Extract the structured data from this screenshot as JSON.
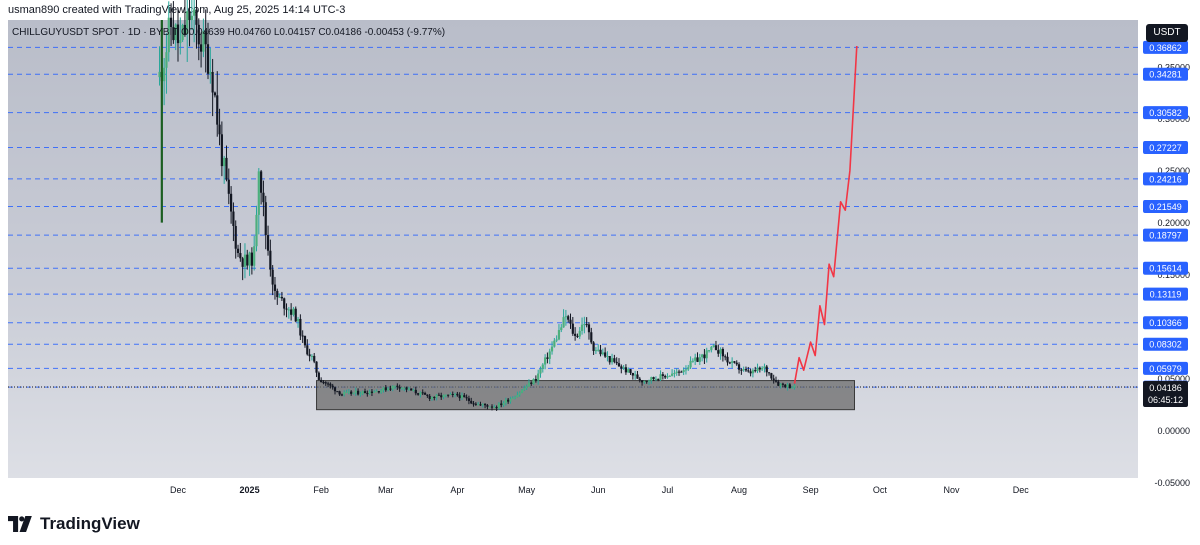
{
  "header": {
    "text": "usman890 created with TradingView.com, Aug 25, 2025 14:14 UTC-3"
  },
  "symbol": {
    "name": "CHILLGUYUSDT SPOT · 1D · BYBIT",
    "open": "O0.04639",
    "high": "H0.04760",
    "low": "L0.04157",
    "close": "C0.04186",
    "change": "-0.00453 (-9.77%)"
  },
  "unit": "USDT",
  "brand": "TradingView",
  "colors": {
    "up": "#26a69a",
    "down": "#131722",
    "level_line": "#2962ff",
    "level_badge": "#2962ff",
    "projection": "#f23645",
    "zone": "#6b6b6b",
    "price_badge": "#131722"
  },
  "chart_data": {
    "type": "candlestick",
    "symbol": "CHILLGUYUSDT",
    "timeframe": "1D",
    "exchange": "BYBIT",
    "current_price": 0.04186,
    "countdown": "06:45:12",
    "x_tick_labels": [
      "Dec",
      "2025",
      "Feb",
      "Mar",
      "Apr",
      "May",
      "Jun",
      "Jul",
      "Aug",
      "Sep",
      "Oct",
      "Nov",
      "Dec"
    ],
    "y_tick_labels": [
      "0.35000",
      "0.30000",
      "0.25000",
      "0.20000",
      "0.15000",
      "0.05000",
      "0.00000",
      "-0.05000"
    ],
    "ylim": [
      -0.065,
      0.395
    ],
    "horizontal_levels": [
      0.36862,
      0.34281,
      0.30582,
      0.27227,
      0.24216,
      0.21549,
      0.18797,
      0.15614,
      0.13119,
      0.10366,
      0.08302,
      0.05979,
      0.04172
    ],
    "accumulation_zone": {
      "from": "2025-01-30",
      "to": "2025-09-20",
      "low": 0.02,
      "high": 0.048
    },
    "price_path": [
      {
        "date": "2024-11-23",
        "value": 0.34
      },
      {
        "date": "2024-11-28",
        "value": 0.39
      },
      {
        "date": "2024-12-02",
        "value": 0.37
      },
      {
        "date": "2024-12-06",
        "value": 0.4
      },
      {
        "date": "2024-12-10",
        "value": 0.38
      },
      {
        "date": "2024-12-14",
        "value": 0.36
      },
      {
        "date": "2024-12-16",
        "value": 0.34
      },
      {
        "date": "2024-12-19",
        "value": 0.28
      },
      {
        "date": "2024-12-23",
        "value": 0.22
      },
      {
        "date": "2024-12-27",
        "value": 0.17
      },
      {
        "date": "2024-12-31",
        "value": 0.16
      },
      {
        "date": "2025-01-03",
        "value": 0.17
      },
      {
        "date": "2025-01-05",
        "value": 0.26
      },
      {
        "date": "2025-01-08",
        "value": 0.19
      },
      {
        "date": "2025-01-12",
        "value": 0.13
      },
      {
        "date": "2025-01-17",
        "value": 0.12
      },
      {
        "date": "2025-01-21",
        "value": 0.11
      },
      {
        "date": "2025-01-25",
        "value": 0.08
      },
      {
        "date": "2025-01-28",
        "value": 0.07
      },
      {
        "date": "2025-01-31",
        "value": 0.05
      },
      {
        "date": "2025-02-10",
        "value": 0.035
      },
      {
        "date": "2025-02-25",
        "value": 0.038
      },
      {
        "date": "2025-03-06",
        "value": 0.043
      },
      {
        "date": "2025-03-20",
        "value": 0.032
      },
      {
        "date": "2025-04-01",
        "value": 0.034
      },
      {
        "date": "2025-04-10",
        "value": 0.025
      },
      {
        "date": "2025-04-18",
        "value": 0.023
      },
      {
        "date": "2025-04-27",
        "value": 0.035
      },
      {
        "date": "2025-05-05",
        "value": 0.05
      },
      {
        "date": "2025-05-12",
        "value": 0.08
      },
      {
        "date": "2025-05-18",
        "value": 0.11
      },
      {
        "date": "2025-05-22",
        "value": 0.09
      },
      {
        "date": "2025-05-26",
        "value": 0.105
      },
      {
        "date": "2025-05-30",
        "value": 0.08
      },
      {
        "date": "2025-06-08",
        "value": 0.065
      },
      {
        "date": "2025-06-20",
        "value": 0.048
      },
      {
        "date": "2025-07-05",
        "value": 0.055
      },
      {
        "date": "2025-07-15",
        "value": 0.07
      },
      {
        "date": "2025-07-22",
        "value": 0.08
      },
      {
        "date": "2025-07-28",
        "value": 0.065
      },
      {
        "date": "2025-08-05",
        "value": 0.055
      },
      {
        "date": "2025-08-12",
        "value": 0.06
      },
      {
        "date": "2025-08-18",
        "value": 0.045
      },
      {
        "date": "2025-08-25",
        "value": 0.04186
      }
    ],
    "projection_path": [
      {
        "date": "2025-08-25",
        "value": 0.045
      },
      {
        "date": "2025-08-27",
        "value": 0.07
      },
      {
        "date": "2025-08-29",
        "value": 0.058
      },
      {
        "date": "2025-09-01",
        "value": 0.085
      },
      {
        "date": "2025-09-03",
        "value": 0.072
      },
      {
        "date": "2025-09-05",
        "value": 0.12
      },
      {
        "date": "2025-09-07",
        "value": 0.102
      },
      {
        "date": "2025-09-09",
        "value": 0.16
      },
      {
        "date": "2025-09-11",
        "value": 0.148
      },
      {
        "date": "2025-09-14",
        "value": 0.22
      },
      {
        "date": "2025-09-16",
        "value": 0.212
      },
      {
        "date": "2025-09-18",
        "value": 0.25
      },
      {
        "date": "2025-09-21",
        "value": 0.37
      }
    ]
  }
}
